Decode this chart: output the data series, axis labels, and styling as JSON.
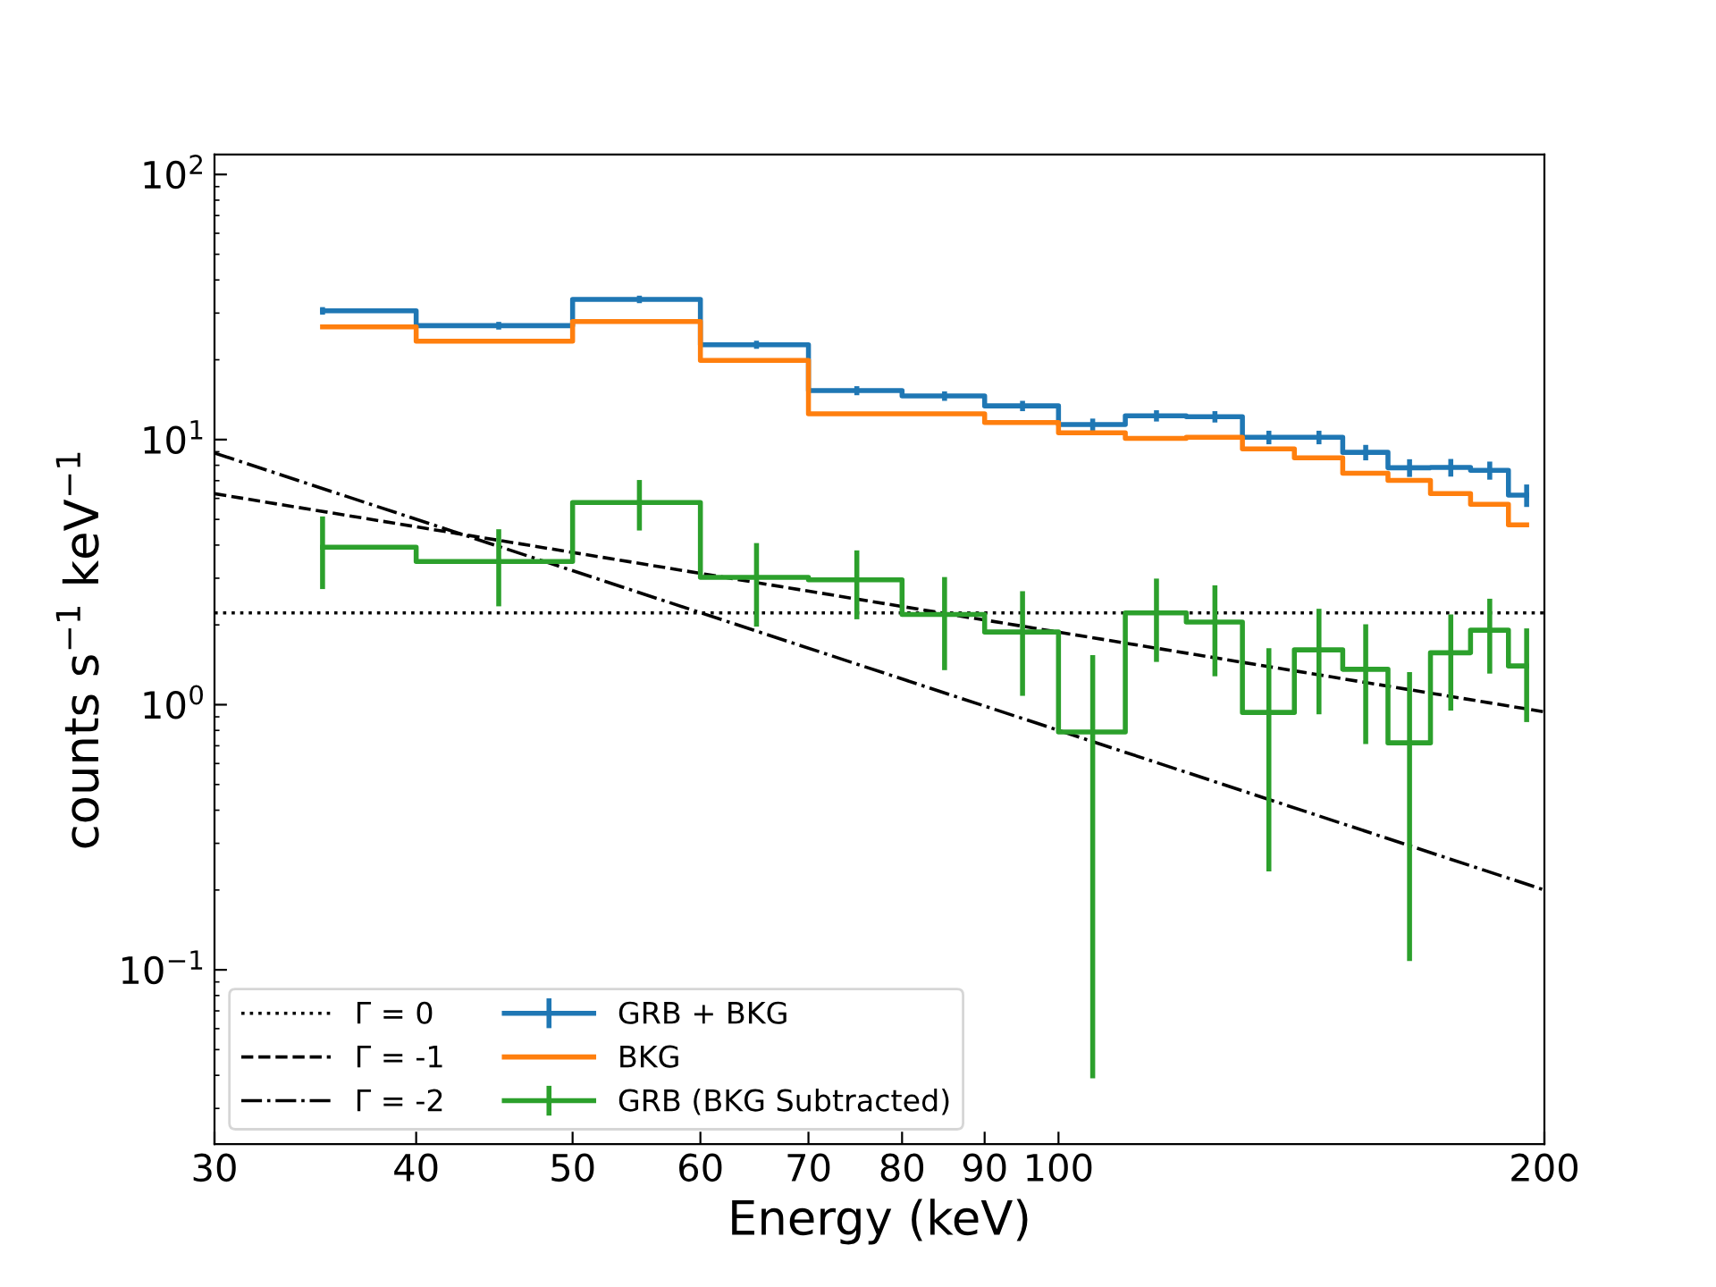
{
  "chart_data": {
    "type": "step",
    "xlabel": "Energy (keV)",
    "ylabel": "counts s$^{−1}$ keV$^{−1}$",
    "log": "xy",
    "grid": false,
    "legend": "bottom left",
    "marker": "none",
    "xlim": [
      30,
      200
    ],
    "xticks": [
      30,
      40,
      50,
      60,
      70,
      80,
      90,
      100,
      200
    ],
    "ylim": [
      0.022,
      119
    ],
    "yticks": [
      {
        "value": 0.1,
        "label": "10$^{−1}$"
      },
      {
        "value": 1,
        "label": "10$^{0}$"
      },
      {
        "value": 10,
        "label": "10$^{1}$"
      },
      {
        "value": 100,
        "label": "10$^{2}$"
      }
    ],
    "series": [
      {
        "name": "Γ = 0",
        "type": "line",
        "line_style": "dotted",
        "color": "#000000",
        "x": [
          30,
          200
        ],
        "values": [
          2.22,
          2.22
        ]
      },
      {
        "name": "Γ = -1",
        "type": "line",
        "line_style": "dashed",
        "color": "#000000",
        "x": [
          30,
          200
        ],
        "values": [
          6.25,
          0.94
        ]
      },
      {
        "name": "Γ = -2",
        "type": "line",
        "line_style": "dashdot",
        "color": "#000000",
        "x": [
          30,
          200
        ],
        "values": [
          8.9,
          0.2
        ]
      },
      {
        "name": "GRB + BKG",
        "line_style": "solid",
        "color": "#1f77b4",
        "x": [
          35,
          45,
          55,
          65,
          75,
          85,
          95,
          105,
          115,
          125,
          135,
          145,
          155,
          165,
          175,
          185,
          195
        ],
        "values": [
          30.6,
          26.9,
          33.8,
          22.8,
          15.3,
          14.6,
          13.4,
          11.4,
          12.3,
          12.2,
          10.2,
          10.2,
          8.95,
          7.83,
          7.85,
          7.66,
          6.17
        ],
        "errors": [
          1.0,
          0.9,
          1.1,
          0.8,
          0.6,
          0.6,
          0.6,
          0.6,
          0.6,
          0.6,
          0.6,
          0.6,
          0.6,
          0.6,
          0.6,
          0.6,
          0.6
        ]
      },
      {
        "name": "BKG",
        "line_style": "solid",
        "color": "#ff7f0e",
        "x": [
          35,
          45,
          55,
          65,
          75,
          85,
          95,
          105,
          115,
          125,
          135,
          145,
          155,
          165,
          175,
          185,
          195
        ],
        "values": [
          26.6,
          23.5,
          27.9,
          19.9,
          12.5,
          12.5,
          11.6,
          10.6,
          10.1,
          10.2,
          9.23,
          8.53,
          7.47,
          7.02,
          6.26,
          5.7,
          4.77
        ]
      },
      {
        "name": "GRB (BKG Subtracted)",
        "line_style": "solid",
        "color": "#2ca02c",
        "x": [
          35,
          45,
          55,
          65,
          75,
          85,
          95,
          105,
          115,
          125,
          135,
          145,
          155,
          165,
          175,
          185,
          195
        ],
        "values": [
          3.93,
          3.47,
          5.79,
          3.02,
          2.96,
          2.19,
          1.88,
          0.789,
          2.22,
          2.05,
          0.935,
          1.61,
          1.36,
          0.718,
          1.57,
          1.91,
          1.4
        ],
        "errors": [
          1.2,
          1.12,
          1.25,
          1.05,
          0.86,
          0.84,
          0.8,
          0.75,
          0.77,
          0.77,
          0.7,
          0.69,
          0.65,
          0.61,
          0.62,
          0.6,
          0.54
        ]
      }
    ]
  }
}
